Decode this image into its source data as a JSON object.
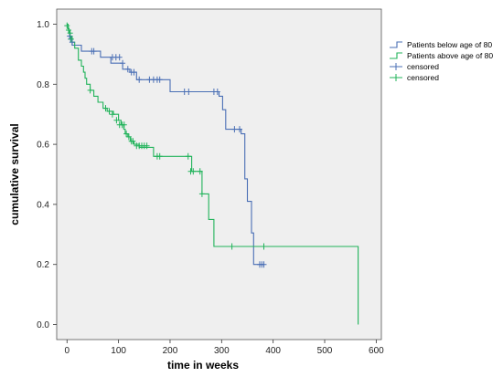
{
  "chart_data": {
    "type": "line",
    "subtype": "kaplan-meier",
    "xlabel": "time in weeks",
    "ylabel": "cumulative survival",
    "xlim": [
      -20,
      610
    ],
    "ylim": [
      -0.05,
      1.05
    ],
    "xticks": [
      0,
      100,
      200,
      300,
      400,
      500,
      600
    ],
    "yticks": [
      0.0,
      0.2,
      0.4,
      0.6,
      0.8,
      1.0
    ],
    "ytick_labels": [
      "0.0",
      "0.2",
      "0.4",
      "0.6",
      "0.8",
      "1.0"
    ],
    "grid": false,
    "legend_position": "right",
    "background": "#efefef",
    "legend": [
      {
        "label": "Patients below age of 80",
        "color": "#4a6fb5",
        "marker": "step"
      },
      {
        "label": "Patients above age of 80",
        "color": "#21b35a",
        "marker": "step"
      },
      {
        "label": "censored",
        "color": "#4a6fb5",
        "marker": "plus"
      },
      {
        "label": "censored",
        "color": "#21b35a",
        "marker": "plus"
      }
    ],
    "series": [
      {
        "name": "Patients below age of 80",
        "color": "#4a6fb5",
        "steps": [
          [
            0,
            1.0
          ],
          [
            2,
            0.985
          ],
          [
            4,
            0.97
          ],
          [
            6,
            0.955
          ],
          [
            10,
            0.93
          ],
          [
            28,
            0.91
          ],
          [
            65,
            0.89
          ],
          [
            85,
            0.87
          ],
          [
            108,
            0.85
          ],
          [
            122,
            0.84
          ],
          [
            135,
            0.815
          ],
          [
            200,
            0.775
          ],
          [
            295,
            0.76
          ],
          [
            302,
            0.715
          ],
          [
            308,
            0.65
          ],
          [
            338,
            0.635
          ],
          [
            345,
            0.485
          ],
          [
            350,
            0.41
          ],
          [
            358,
            0.305
          ],
          [
            362,
            0.2
          ],
          [
            382,
            0.2
          ]
        ],
        "censored": [
          [
            5,
            0.96
          ],
          [
            7,
            0.95
          ],
          [
            10,
            0.94
          ],
          [
            48,
            0.91
          ],
          [
            52,
            0.91
          ],
          [
            88,
            0.89
          ],
          [
            95,
            0.89
          ],
          [
            102,
            0.89
          ],
          [
            108,
            0.87
          ],
          [
            118,
            0.85
          ],
          [
            125,
            0.84
          ],
          [
            130,
            0.84
          ],
          [
            140,
            0.815
          ],
          [
            160,
            0.815
          ],
          [
            168,
            0.815
          ],
          [
            175,
            0.815
          ],
          [
            180,
            0.815
          ],
          [
            228,
            0.775
          ],
          [
            236,
            0.775
          ],
          [
            285,
            0.775
          ],
          [
            292,
            0.775
          ],
          [
            325,
            0.65
          ],
          [
            335,
            0.65
          ],
          [
            374,
            0.2
          ],
          [
            378,
            0.2
          ],
          [
            382,
            0.2
          ]
        ]
      },
      {
        "name": "Patients above age of 80",
        "color": "#21b35a",
        "steps": [
          [
            0,
            1.0
          ],
          [
            2,
            0.985
          ],
          [
            4,
            0.975
          ],
          [
            5,
            0.96
          ],
          [
            10,
            0.94
          ],
          [
            15,
            0.92
          ],
          [
            22,
            0.88
          ],
          [
            28,
            0.86
          ],
          [
            32,
            0.84
          ],
          [
            35,
            0.82
          ],
          [
            38,
            0.8
          ],
          [
            45,
            0.78
          ],
          [
            52,
            0.76
          ],
          [
            60,
            0.74
          ],
          [
            70,
            0.72
          ],
          [
            78,
            0.71
          ],
          [
            90,
            0.7
          ],
          [
            100,
            0.68
          ],
          [
            105,
            0.665
          ],
          [
            110,
            0.65
          ],
          [
            113,
            0.635
          ],
          [
            118,
            0.625
          ],
          [
            123,
            0.61
          ],
          [
            130,
            0.6
          ],
          [
            140,
            0.59
          ],
          [
            168,
            0.56
          ],
          [
            242,
            0.51
          ],
          [
            262,
            0.435
          ],
          [
            275,
            0.35
          ],
          [
            285,
            0.26
          ],
          [
            565,
            0.26
          ],
          [
            565,
            0.0
          ]
        ],
        "censored": [
          [
            0,
            0.995
          ],
          [
            3,
            0.98
          ],
          [
            6,
            0.97
          ],
          [
            8,
            0.95
          ],
          [
            45,
            0.78
          ],
          [
            75,
            0.72
          ],
          [
            82,
            0.71
          ],
          [
            88,
            0.7
          ],
          [
            96,
            0.68
          ],
          [
            102,
            0.665
          ],
          [
            107,
            0.665
          ],
          [
            111,
            0.665
          ],
          [
            115,
            0.635
          ],
          [
            120,
            0.625
          ],
          [
            125,
            0.61
          ],
          [
            128,
            0.61
          ],
          [
            135,
            0.595
          ],
          [
            140,
            0.595
          ],
          [
            145,
            0.595
          ],
          [
            150,
            0.595
          ],
          [
            155,
            0.595
          ],
          [
            175,
            0.56
          ],
          [
            180,
            0.56
          ],
          [
            235,
            0.56
          ],
          [
            240,
            0.51
          ],
          [
            245,
            0.51
          ],
          [
            258,
            0.51
          ],
          [
            262,
            0.435
          ],
          [
            320,
            0.26
          ],
          [
            382,
            0.26
          ]
        ]
      }
    ]
  }
}
